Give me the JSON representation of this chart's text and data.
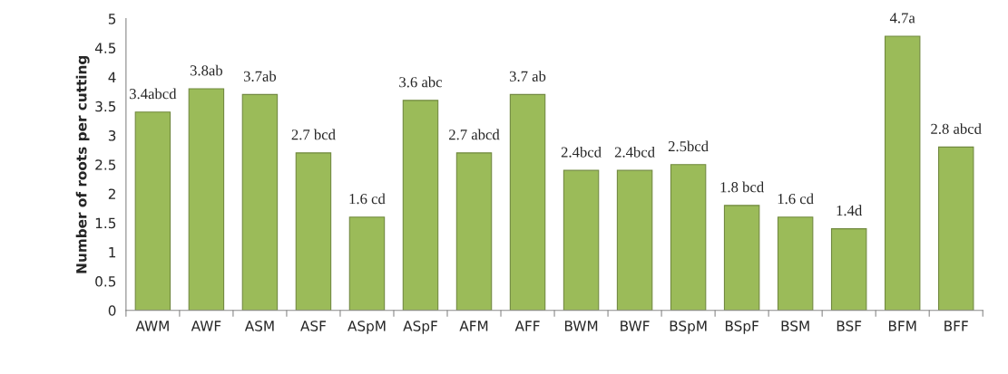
{
  "chart_data": {
    "type": "bar",
    "ylabel": "Number of roots per cutting",
    "categories": [
      "AWM",
      "AWF",
      "ASM",
      "ASF",
      "ASpM",
      "ASpF",
      "AFM",
      "AFF",
      "BWM",
      "BWF",
      "BSpM",
      "BSpF",
      "BSM",
      "BSF",
      "BFM",
      "BFF"
    ],
    "values": [
      3.4,
      3.8,
      3.7,
      2.7,
      1.6,
      3.6,
      2.7,
      3.7,
      2.4,
      2.4,
      2.5,
      1.8,
      1.6,
      1.4,
      4.7,
      2.8
    ],
    "value_labels": [
      "3.4abcd",
      "3.8ab",
      "3.7ab",
      "2.7 bcd",
      "1.6 cd",
      "3.6 abc",
      "2.7 abcd",
      "3.7 ab",
      "2.4bcd",
      "2.4bcd",
      "2.5bcd",
      "1.8 bcd",
      "1.6 cd",
      "1.4d",
      "4.7a",
      "2.8 abcd"
    ],
    "color": "#9bbb59",
    "ylim": [
      0,
      5
    ],
    "yticks": [
      0,
      0.5,
      1,
      1.5,
      2,
      2.5,
      3,
      3.5,
      4,
      4.5,
      5
    ],
    "grid": false
  }
}
